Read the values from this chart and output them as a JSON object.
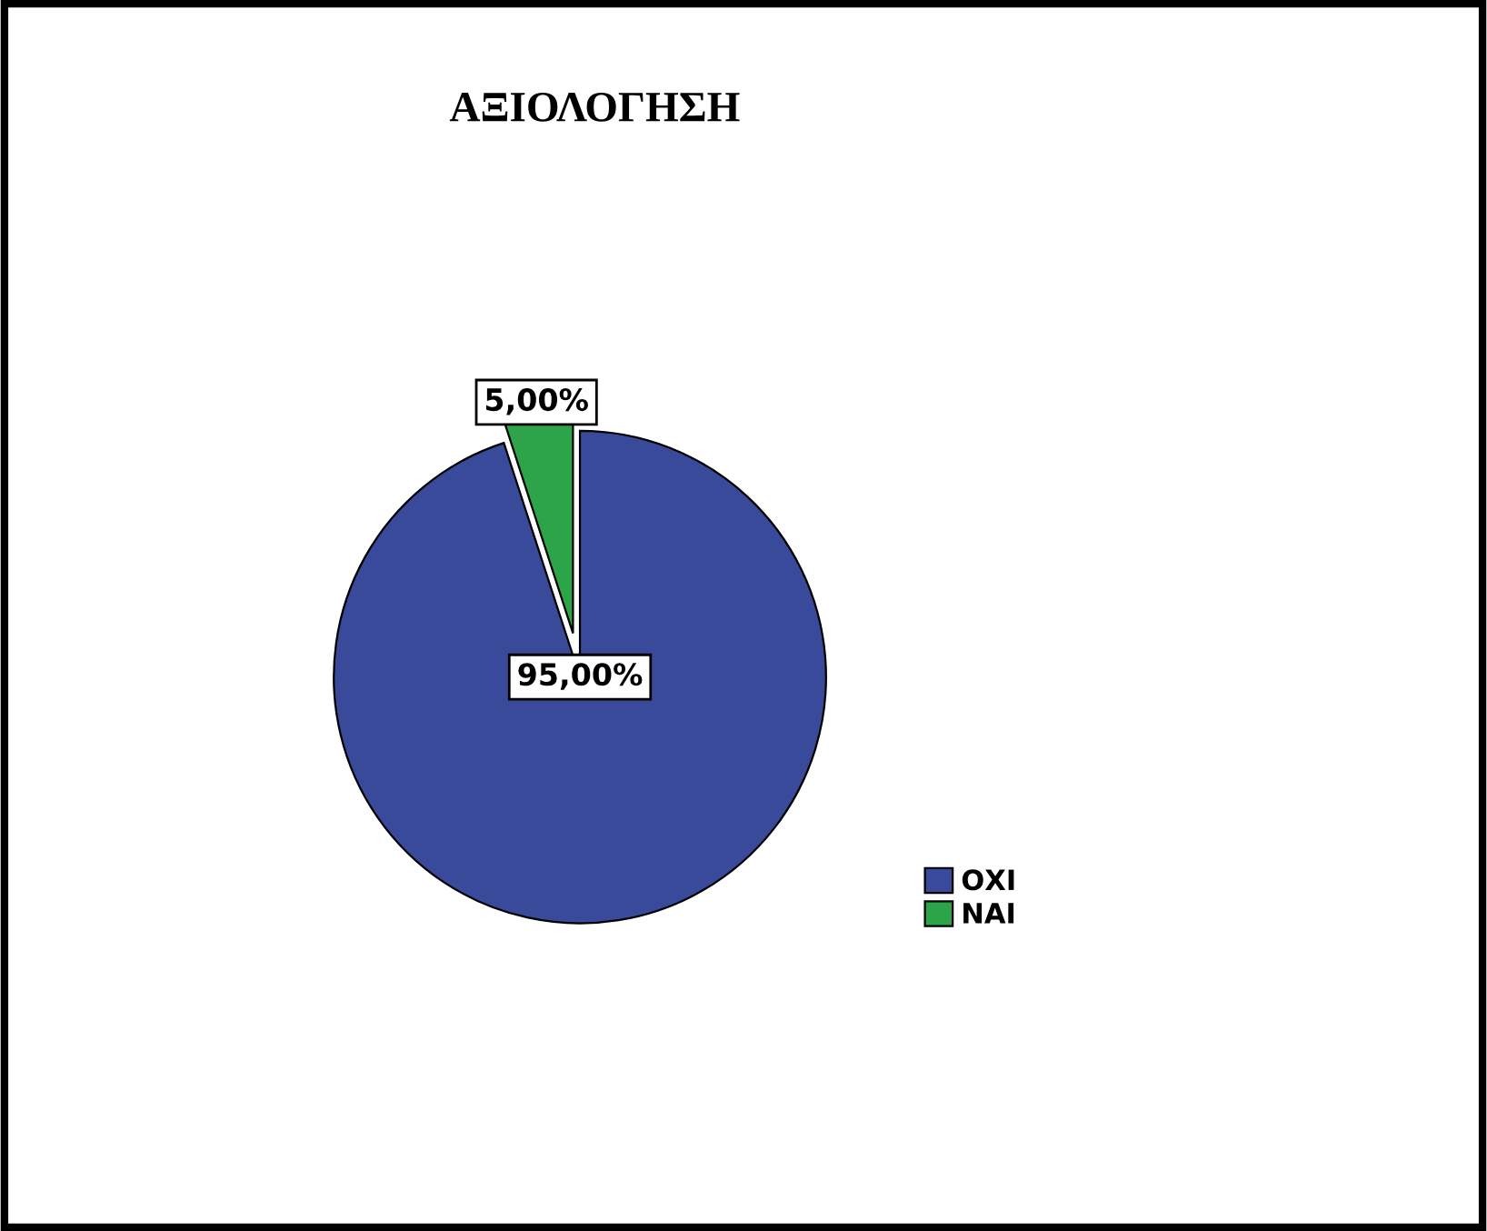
{
  "chart_data": {
    "type": "pie",
    "title": "ΑΞΙΟΛΟΓΗΣΗ",
    "categories": [
      "ΟΧΙ",
      "ΝΑΙ"
    ],
    "values": [
      95,
      5
    ],
    "colors": [
      "#3a4a9a",
      "#2ea44a"
    ],
    "value_labels": [
      "95,00%",
      "5,00%"
    ],
    "legend": "right"
  }
}
